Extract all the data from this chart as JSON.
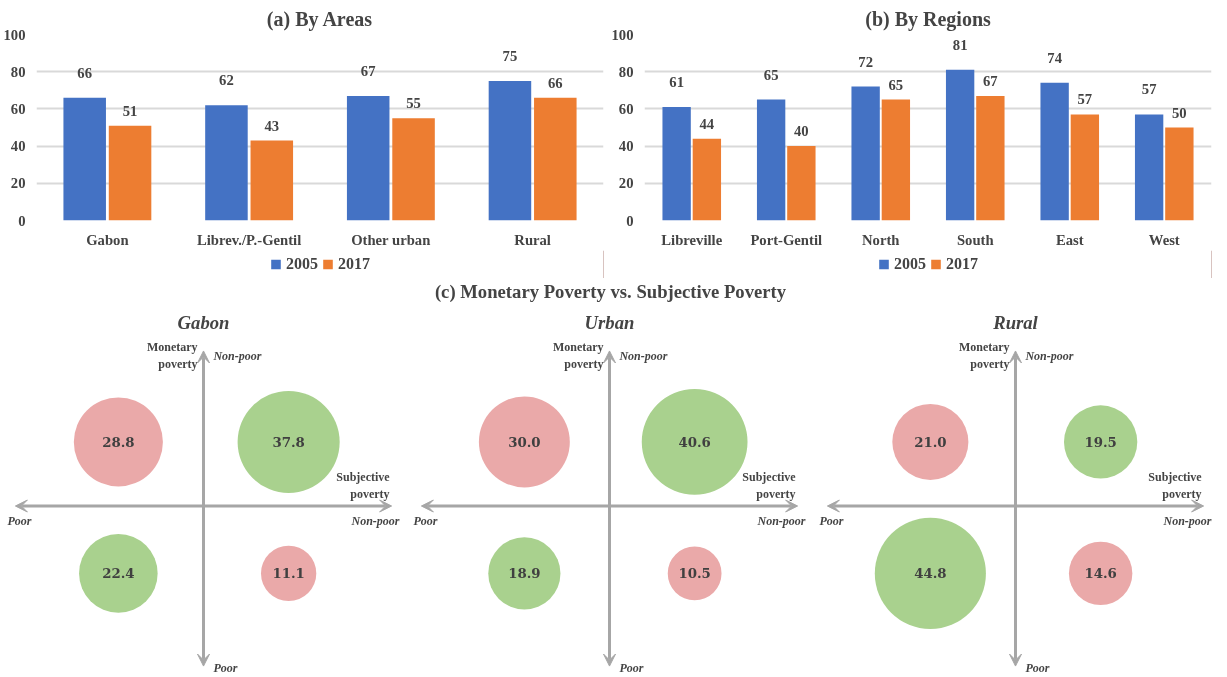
{
  "chart_data": [
    {
      "type": "bar",
      "title": "(a) By Areas",
      "categories": [
        "Gabon",
        "Librev./P.-Gentil",
        "Other urban",
        "Rural"
      ],
      "series": [
        {
          "name": "2005",
          "color": "#4472c4",
          "values": [
            66,
            62,
            67,
            75
          ]
        },
        {
          "name": "2017",
          "color": "#ed7d31",
          "values": [
            51,
            43,
            55,
            66
          ]
        }
      ],
      "ylim": [
        0,
        100
      ],
      "yticks": [
        0,
        20,
        40,
        60,
        80,
        100
      ],
      "grid": "y",
      "legend": "bottom",
      "data_labels": true
    },
    {
      "type": "bar",
      "title": "(b) By Regions",
      "categories": [
        "Libreville",
        "Port-Gentil",
        "North",
        "South",
        "East",
        "West"
      ],
      "series": [
        {
          "name": "2005",
          "color": "#4472c4",
          "values": [
            61,
            65,
            72,
            81,
            74,
            57
          ]
        },
        {
          "name": "2017",
          "color": "#ed7d31",
          "values": [
            44,
            40,
            65,
            67,
            57,
            50
          ]
        }
      ],
      "ylim": [
        0,
        100
      ],
      "yticks": [
        0,
        20,
        40,
        60,
        80,
        100
      ],
      "grid": "y",
      "legend": "bottom",
      "data_labels": true
    },
    {
      "type": "other",
      "title": "(c) Monetary Poverty vs. Subjective Poverty"
    },
    {
      "type": "other",
      "title": "Gabon",
      "categories": [
        null,
        null,
        null,
        null
      ],
      "values": [
        28.8,
        37.8,
        22.4,
        11.1
      ],
      "value_labels": [
        "28.8",
        "37.8",
        "22.4",
        "11.1"
      ],
      "colors": [
        "#eaa9a9",
        "#a9d18e",
        "#a9d18e",
        "#eaa9a9"
      ],
      "data_labels": true,
      "xlabel": "Subjective poverty",
      "ylabel": "Monetary poverty",
      "annotations": [
        "Non-poor",
        "Poor",
        "Poor",
        "Non-poor"
      ]
    },
    {
      "type": "other",
      "title": "Urban",
      "categories": [
        null,
        null,
        null,
        null
      ],
      "values": [
        30.0,
        40.6,
        18.9,
        10.5
      ],
      "value_labels": [
        "30.0",
        "40.6",
        "18.9",
        "10.5"
      ],
      "colors": [
        "#eaa9a9",
        "#a9d18e",
        "#a9d18e",
        "#eaa9a9"
      ],
      "data_labels": true,
      "xlabel": "Subjective poverty",
      "ylabel": "Monetary poverty",
      "annotations": [
        "Non-poor",
        "Poor",
        "Poor",
        "Non-poor"
      ]
    },
    {
      "type": "other",
      "title": "Rural",
      "categories": [
        null,
        null,
        null,
        null
      ],
      "values": [
        21.0,
        19.5,
        44.8,
        14.6
      ],
      "value_labels": [
        "21.0",
        "19.5",
        "44.8",
        "14.6"
      ],
      "colors": [
        "#eaa9a9",
        "#a9d18e",
        "#a9d18e",
        "#eaa9a9"
      ],
      "data_labels": true,
      "xlabel": "Subjective poverty",
      "ylabel": "Monetary poverty",
      "annotations": [
        "Non-poor",
        "Poor",
        "Poor",
        "Non-poor"
      ]
    }
  ]
}
